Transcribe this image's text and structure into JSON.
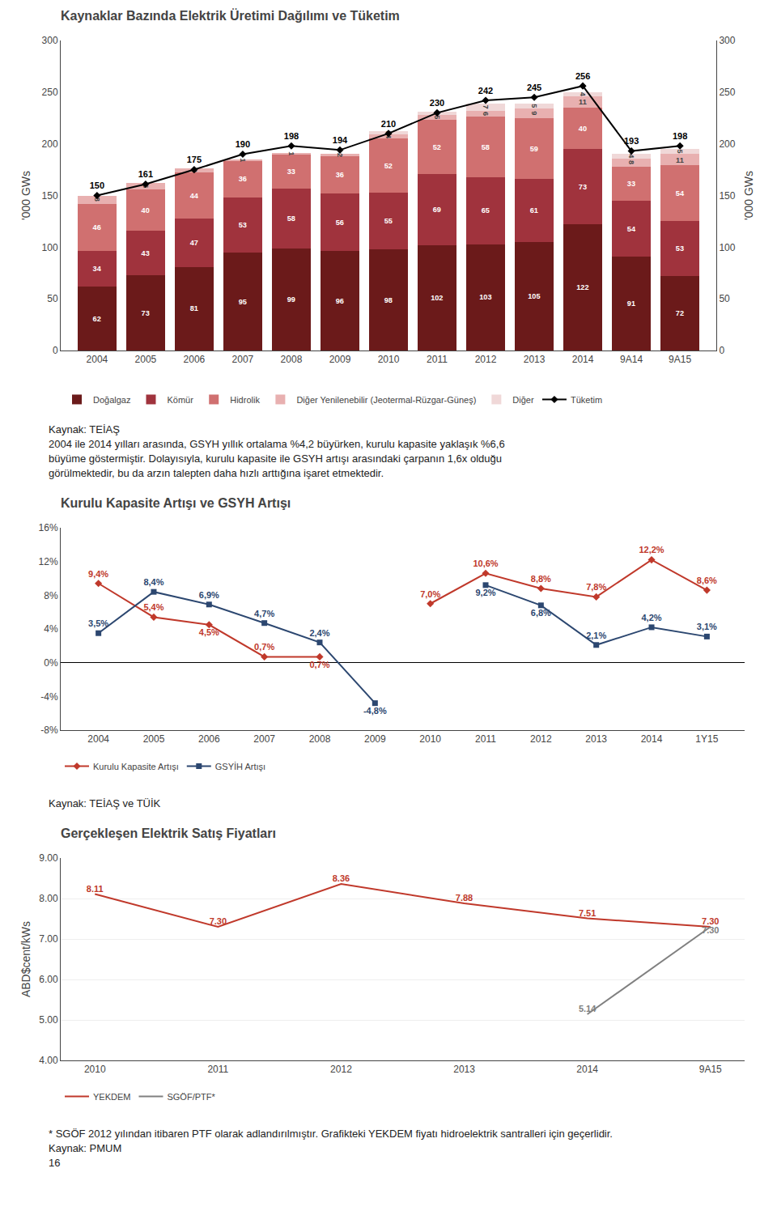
{
  "chart_data": [
    {
      "type": "bar",
      "stacked": true,
      "title": "Kaynaklar Bazında Elektrik Üretimi Dağılımı ve Tüketim",
      "ylabel": "'000 GWs",
      "y2label": "'000 GWs",
      "categories": [
        "2004",
        "2005",
        "2006",
        "2007",
        "2008",
        "2009",
        "2010",
        "2011",
        "2012",
        "2013",
        "2014",
        "9A14",
        "9A15"
      ],
      "series": [
        {
          "name": "Doğalgaz",
          "color": "#6B1A1A",
          "values": [
            62,
            73,
            81,
            95,
            99,
            96,
            98,
            102,
            103,
            105,
            122,
            91,
            72
          ]
        },
        {
          "name": "Kömür",
          "color": "#A0333D",
          "values": [
            34,
            43,
            47,
            53,
            58,
            56,
            55,
            69,
            65,
            61,
            73,
            54,
            53
          ]
        },
        {
          "name": "Hidrolik",
          "color": "#D07070",
          "values": [
            46,
            40,
            44,
            36,
            33,
            36,
            52,
            52,
            58,
            59,
            40,
            33,
            54
          ]
        },
        {
          "name": "Diğer Yenilenebilir (Jeotermal-Rüzgar-Güneş)",
          "color": "#E8B0B0",
          "values": [
            8,
            6,
            4,
            1,
            1,
            2,
            4,
            5,
            6,
            9,
            11,
            8,
            11
          ]
        },
        {
          "name": "Diğer",
          "color": "#F0D8D8",
          "values": [
            0,
            0,
            0,
            0,
            0,
            0,
            3,
            3,
            7,
            5,
            4,
            4,
            5
          ],
          "value_labels": [
            null,
            null,
            null,
            null,
            null,
            null,
            "3",
            "3",
            "7",
            "5",
            "4",
            "4",
            "5"
          ]
        },
        {
          "name": "Tüketim",
          "type": "line",
          "axis": "y2",
          "color": "#000000",
          "marker": "diamond",
          "values": [
            150,
            161,
            175,
            190,
            198,
            194,
            210,
            230,
            242,
            245,
            256,
            193,
            198
          ]
        }
      ],
      "ylim": [
        0,
        300
      ],
      "yticks": [
        0,
        50,
        100,
        150,
        200,
        250,
        300
      ],
      "y2lim": [
        0,
        300
      ],
      "y2ticks": [
        0,
        50,
        100,
        150,
        200,
        250,
        300
      ],
      "grid": false,
      "legend": "bottom",
      "data_labels": true,
      "annotations": [
        "Kaynak: TEİAŞ",
        "2004 ile 2014 yılları arasında, GSYH yıllık ortalama %4,2 büyürken, kurulu kapasite yaklaşık %6,6",
        "büyüme göstermiştir. Dolayısıyla, kurulu kapasite ile GSYH artışı arasındaki çarpanın 1,6x olduğu",
        "görülmektedir, bu da arzın talepten daha hızlı arttığına işaret etmektedir."
      ]
    },
    {
      "type": "line",
      "title": "Kurulu Kapasite Artışı ve GSYH Artışı",
      "categories": [
        "2004",
        "2005",
        "2006",
        "2007",
        "2008",
        "2009",
        "2010",
        "2011",
        "2012",
        "2013",
        "2014",
        "1Y15"
      ],
      "series": [
        {
          "name": "Kurulu Kapasite Artışı",
          "color": "#C0392B",
          "marker": "diamond",
          "values": [
            9.4,
            5.4,
            4.5,
            0.7,
            0.7,
            null,
            7.0,
            10.6,
            8.8,
            7.8,
            12.2,
            8.6
          ],
          "value_labels": [
            "9,4%",
            "5,4%",
            "4,5%",
            "0,7%",
            "0,7%",
            null,
            "7,0%",
            "10,6%",
            "8,8%",
            "7,8%",
            "12,2%",
            "8,6%"
          ]
        },
        {
          "name": "GSYİH Artışı",
          "color": "#2C4770",
          "marker": "square",
          "values": [
            3.5,
            8.4,
            6.9,
            4.7,
            2.4,
            -4.8,
            null,
            9.2,
            6.8,
            2.1,
            4.2,
            3.1
          ],
          "value_labels": [
            "3,5%",
            "8,4%",
            "6,9%",
            "4,7%",
            "2,4%",
            "-4,8%",
            null,
            "9,2%",
            "6,8%",
            "2,1%",
            "4,2%",
            "3,1%"
          ]
        }
      ],
      "ylim": [
        -8,
        16
      ],
      "yticks": [
        {
          "value": -8,
          "label": "-8%"
        },
        {
          "value": -4,
          "label": "-4%"
        },
        {
          "value": 0,
          "label": "0%"
        },
        {
          "value": 4,
          "label": "4%"
        },
        {
          "value": 8,
          "label": "8%"
        },
        {
          "value": 12,
          "label": "12%"
        },
        {
          "value": 16,
          "label": "16%"
        }
      ],
      "grid": false,
      "legend": "bottom",
      "data_labels": true,
      "annotations": [
        "Kaynak: TEİAŞ ve TÜİK"
      ]
    },
    {
      "type": "line",
      "title": "Gerçekleşen Elektrik Satış Fiyatları",
      "ylabel": "ABD$cent/kWs",
      "categories": [
        "2010",
        "2011",
        "2012",
        "2013",
        "2014",
        "9A15"
      ],
      "series": [
        {
          "name": "YEKDEM",
          "color": "#C0392B",
          "marker": "none",
          "values": [
            8.11,
            7.3,
            8.36,
            7.88,
            7.51,
            7.3
          ],
          "value_labels": [
            "8.11",
            "7.30",
            "8.36",
            "7.88",
            "7.51",
            "7.30"
          ]
        },
        {
          "name": "SGÖF/PTF*",
          "color": "#808080",
          "marker": "none",
          "values": [
            null,
            null,
            null,
            null,
            5.14,
            7.3
          ],
          "value_labels": [
            null,
            null,
            null,
            null,
            "5.14",
            "7.30"
          ]
        }
      ],
      "ylim": [
        4.0,
        9.0
      ],
      "yticks": [
        {
          "value": 4.0,
          "label": "4.00"
        },
        {
          "value": 5.0,
          "label": "5.00"
        },
        {
          "value": 6.0,
          "label": "6.00"
        },
        {
          "value": 7.0,
          "label": "7.00"
        },
        {
          "value": 8.0,
          "label": "8.00"
        },
        {
          "value": 9.0,
          "label": "9.00"
        }
      ],
      "grid": true,
      "legend": "bottom",
      "data_labels": true,
      "annotations": [
        "* SGÖF 2012 yılından itibaren PTF olarak adlandırılmıştır. Grafikteki YEKDEM fiyatı hidroelektrik santralleri için geçerlidir.",
        "Kaynak: PMUM",
        "16"
      ]
    }
  ]
}
